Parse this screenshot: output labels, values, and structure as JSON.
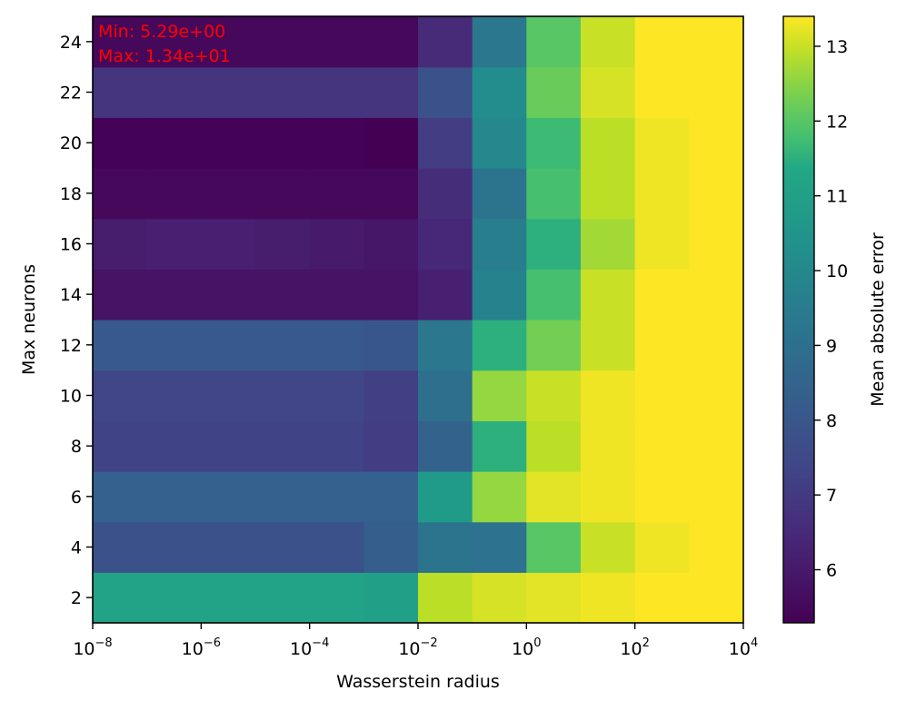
{
  "chart_data": {
    "type": "heatmap",
    "title": "",
    "xlabel": "Wasserstein radius",
    "ylabel": "Max neurons",
    "colorbar_label": "Mean absolute error",
    "colormap": "viridis",
    "x_scale": "log",
    "x_values": [
      1e-08,
      1e-07,
      1e-06,
      1e-05,
      0.0001,
      0.001,
      0.01,
      0.1,
      1,
      10,
      100,
      1000
    ],
    "y_values": [
      2,
      4,
      6,
      8,
      10,
      12,
      14,
      16,
      18,
      20,
      22,
      24
    ],
    "x_ticks": [
      {
        "base": "10",
        "exp": "−8"
      },
      {
        "base": "10",
        "exp": "−6"
      },
      {
        "base": "10",
        "exp": "−4"
      },
      {
        "base": "10",
        "exp": "−2"
      },
      {
        "base": "10",
        "exp": "0"
      },
      {
        "base": "10",
        "exp": "2"
      },
      {
        "base": "10",
        "exp": "4"
      }
    ],
    "y_ticks": [
      "2",
      "4",
      "6",
      "8",
      "10",
      "12",
      "14",
      "16",
      "18",
      "20",
      "22",
      "24"
    ],
    "colorbar_ticks": [
      "6",
      "7",
      "8",
      "9",
      "10",
      "11",
      "12",
      "13"
    ],
    "vmin": 5.29,
    "vmax": 13.4,
    "annotations": {
      "min_text": "Min: 5.29e+00",
      "max_text": "Max: 1.34e+01",
      "color": "#ff0000"
    },
    "values": [
      [
        11.1,
        11.1,
        11.1,
        11.1,
        11.1,
        11.0,
        12.9,
        13.1,
        13.2,
        13.3,
        13.4,
        13.4
      ],
      [
        7.8,
        7.8,
        7.8,
        7.8,
        7.8,
        8.3,
        9.2,
        9.1,
        12.0,
        13.0,
        13.3,
        13.4
      ],
      [
        8.4,
        8.4,
        8.4,
        8.4,
        8.4,
        8.4,
        10.8,
        12.6,
        13.2,
        13.3,
        13.4,
        13.4
      ],
      [
        7.3,
        7.3,
        7.3,
        7.3,
        7.3,
        7.1,
        8.5,
        11.5,
        12.9,
        13.3,
        13.4,
        13.4
      ],
      [
        7.4,
        7.4,
        7.4,
        7.4,
        7.4,
        7.2,
        9.0,
        12.6,
        13.0,
        13.3,
        13.4,
        13.4
      ],
      [
        8.1,
        8.1,
        8.1,
        8.1,
        8.1,
        8.0,
        9.3,
        11.5,
        12.3,
        13.0,
        13.4,
        13.4
      ],
      [
        5.8,
        5.8,
        5.8,
        5.8,
        5.8,
        5.8,
        6.2,
        9.8,
        11.8,
        13.0,
        13.4,
        13.4
      ],
      [
        6.1,
        6.2,
        6.2,
        6.1,
        6.0,
        5.9,
        6.4,
        9.6,
        11.5,
        12.7,
        13.3,
        13.4
      ],
      [
        5.5,
        5.5,
        5.5,
        5.5,
        5.5,
        5.5,
        6.6,
        9.2,
        11.8,
        12.9,
        13.3,
        13.4
      ],
      [
        5.35,
        5.35,
        5.35,
        5.35,
        5.35,
        5.29,
        7.1,
        10.0,
        11.7,
        12.9,
        13.3,
        13.4
      ],
      [
        6.8,
        6.8,
        6.8,
        6.8,
        6.8,
        6.8,
        7.8,
        10.2,
        12.2,
        13.1,
        13.4,
        13.4
      ],
      [
        5.5,
        5.5,
        5.5,
        5.5,
        5.5,
        5.5,
        6.5,
        9.3,
        12.0,
        13.0,
        13.4,
        13.4
      ]
    ]
  }
}
